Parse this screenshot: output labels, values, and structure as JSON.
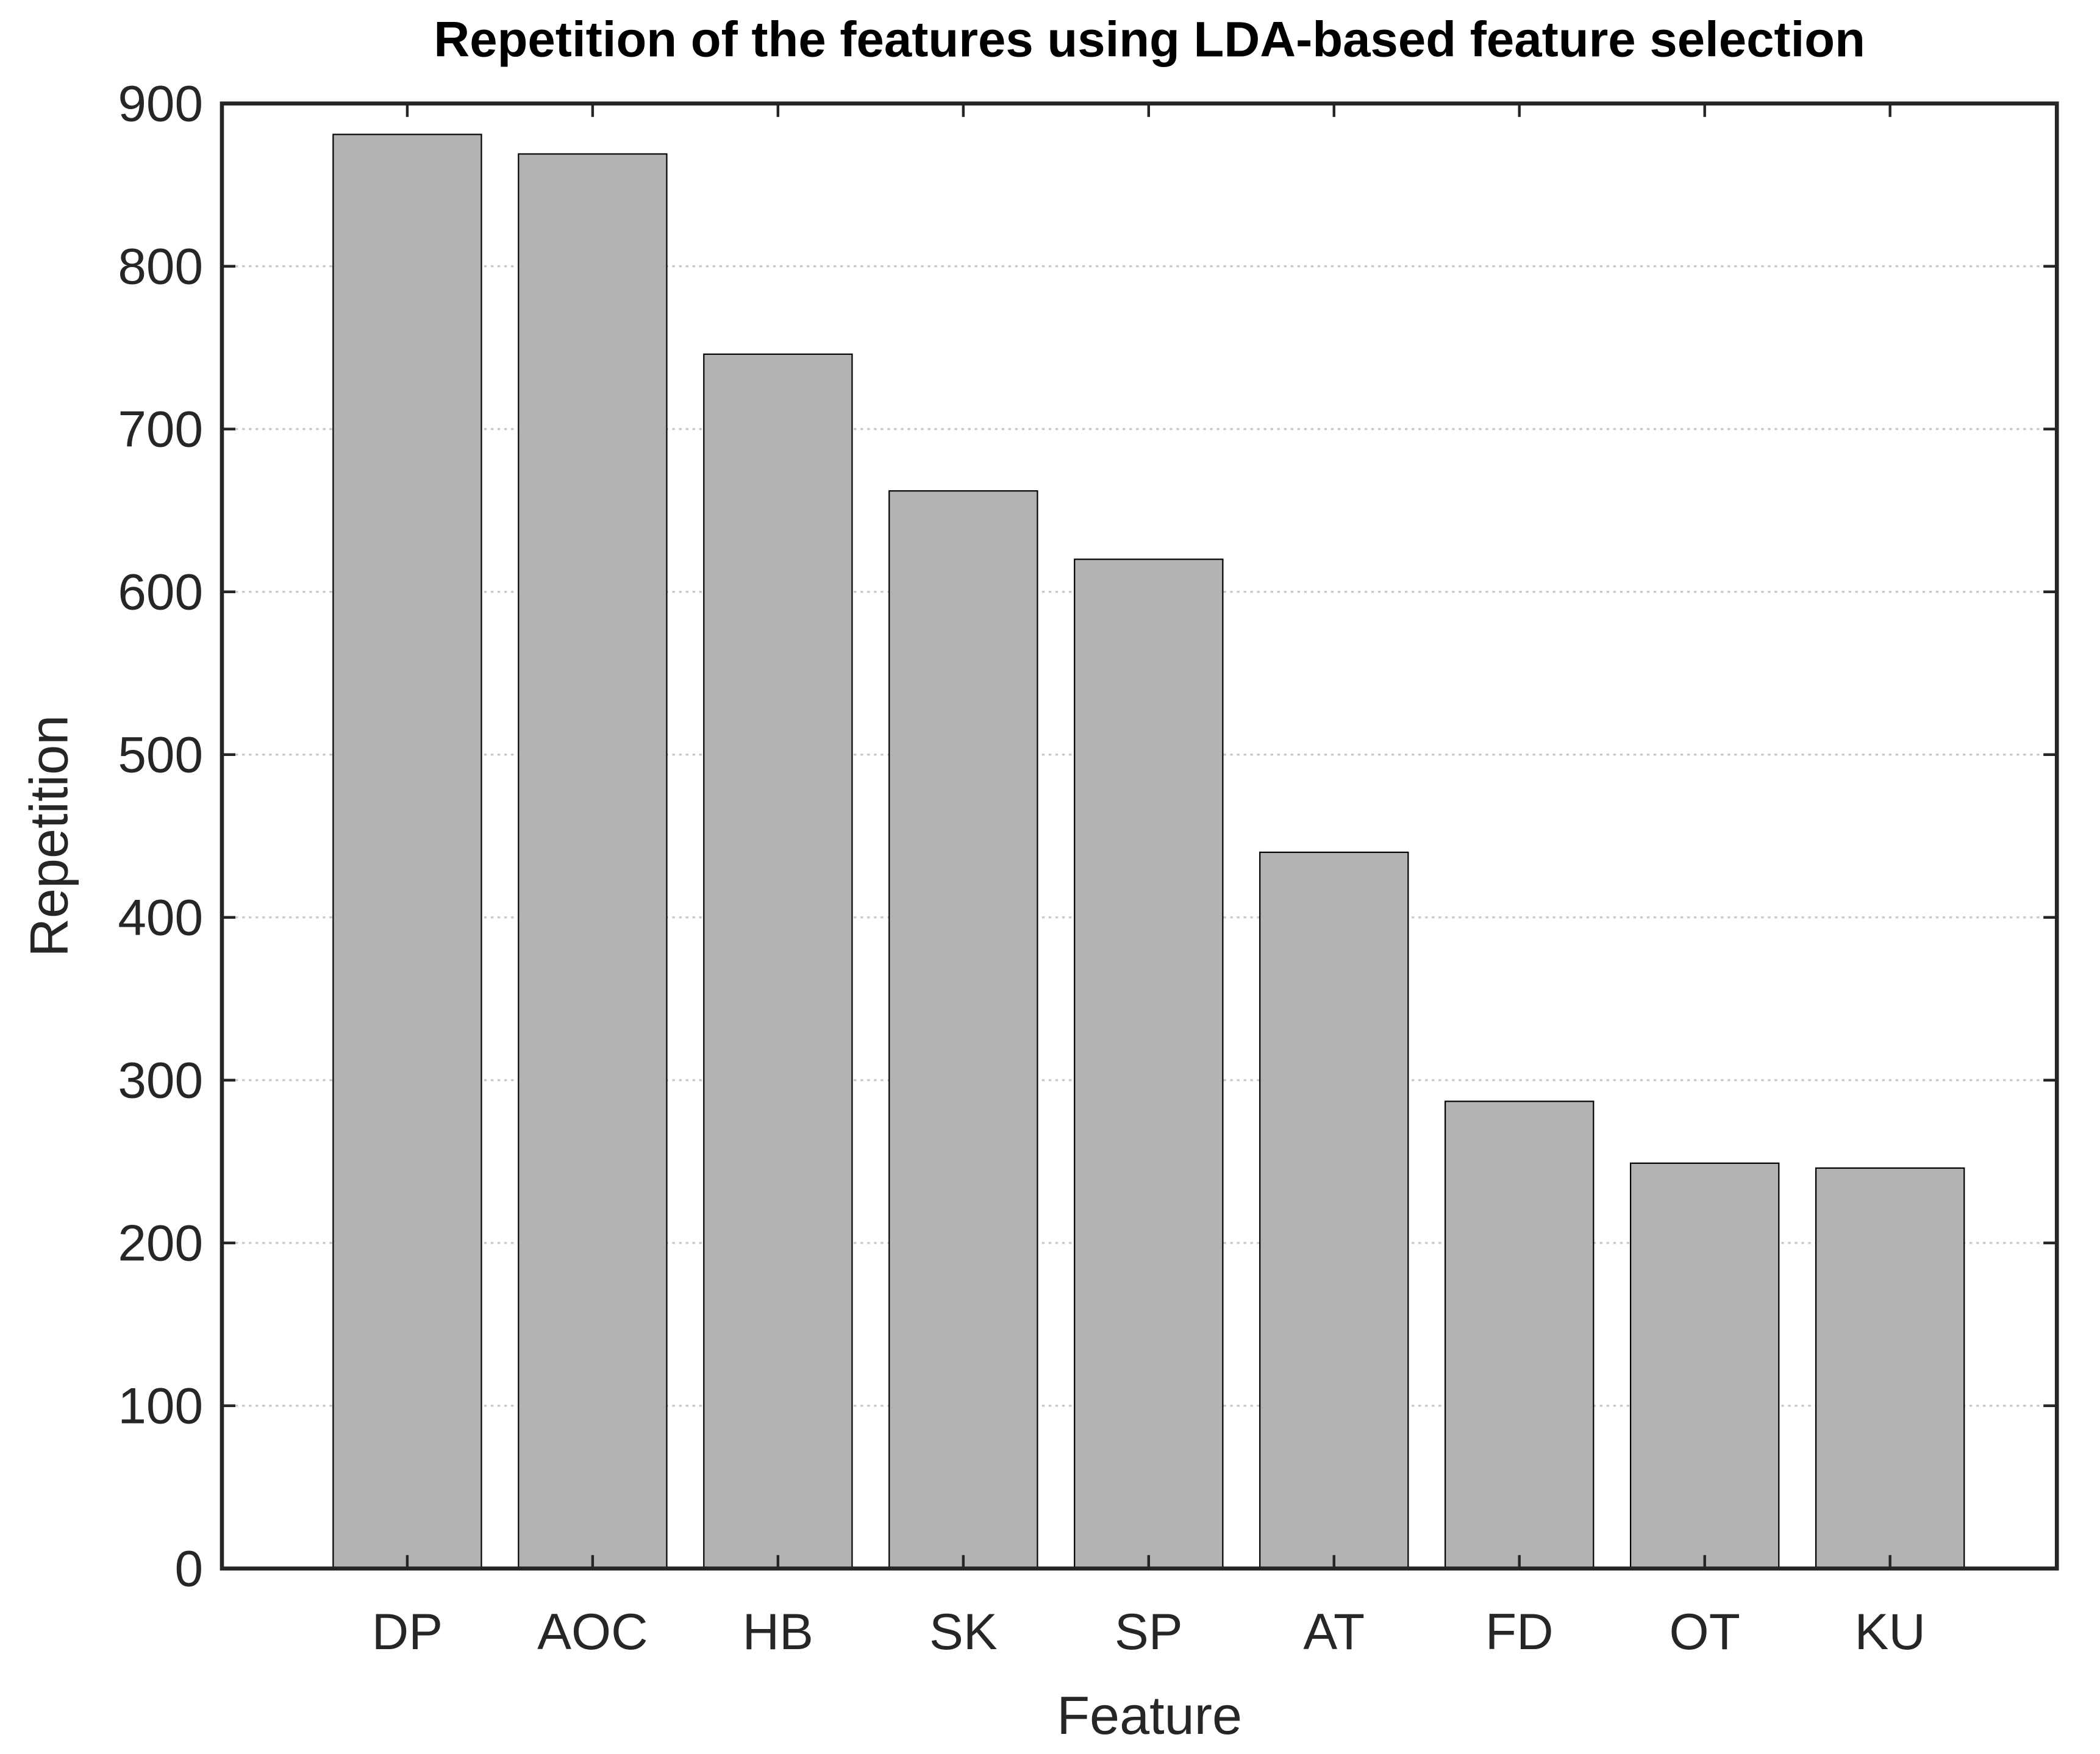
{
  "chart_data": {
    "type": "bar",
    "title": "Repetition of the features using LDA-based feature selection",
    "x_label": "Feature",
    "y_label": "Repetition",
    "categories": [
      "DP",
      "AOC",
      "HB",
      "SK",
      "SP",
      "AT",
      "FD",
      "OT",
      "KU"
    ],
    "values": [
      881,
      869,
      746,
      662,
      620,
      440,
      287,
      249,
      246
    ],
    "color": "#b3b3b3",
    "ylim": [
      0,
      900
    ],
    "yticks": [
      0,
      100,
      200,
      300,
      400,
      500,
      600,
      700,
      800,
      900
    ],
    "grid": true
  }
}
